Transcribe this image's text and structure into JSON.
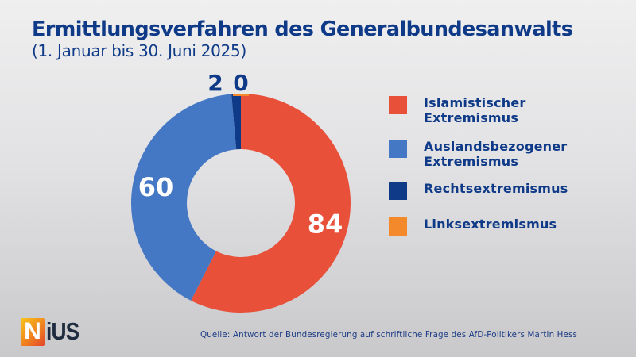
{
  "header": {
    "title": "Ermittlungsverfahren des Generalbundesanwalts",
    "subtitle": "(1. Januar bis 30. Juni 2025)"
  },
  "chart_data": {
    "type": "pie",
    "variant": "donut",
    "title": "Ermittlungsverfahren des Generalbundesanwalts",
    "subtitle": "(1. Januar bis 30. Juni 2025)",
    "start": "top",
    "direction": "clockwise",
    "legend_position": "right",
    "series": [
      {
        "name": "Islamistischer Extremismus",
        "value": 84,
        "color": "#e8503a",
        "label": "84"
      },
      {
        "name": "Auslandsbezogener Extremismus",
        "value": 60,
        "color": "#4477c4",
        "label": "60"
      },
      {
        "name": "Rechtsextremismus",
        "value": 2,
        "color": "#0f3a88",
        "label": "2"
      },
      {
        "name": "Linksextremismus",
        "value": 0,
        "color": "#f4892c",
        "label": "0"
      }
    ]
  },
  "legend": {
    "items": [
      {
        "label": "Islamistischer\nExtremismus",
        "color": "#e8503a"
      },
      {
        "label": "Auslandsbezogener\nExtremismus",
        "color": "#4477c4"
      },
      {
        "label": "Rechtsextremismus",
        "color": "#0f3a88"
      },
      {
        "label": "Linksextremismus",
        "color": "#f4892c"
      }
    ]
  },
  "footer": {
    "logo_first": "N",
    "logo_rest": "iUS",
    "source": "Quelle: Antwort der Bundesregierung auf schriftliche Frage des AfD-Politikers Martin Hess"
  },
  "colors": {
    "title": "#0f3a88",
    "label_on_slice": "#ffffff"
  }
}
